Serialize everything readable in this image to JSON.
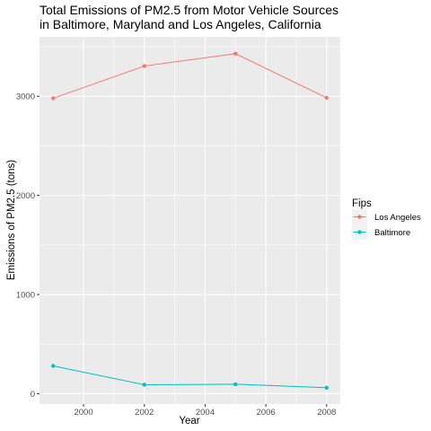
{
  "chart_data": {
    "type": "line",
    "title_lines": [
      "Total Emissions of PM2.5 from Motor Vehicle Sources",
      "in Baltimore, Maryland and Los Angeles, California"
    ],
    "xlabel": "Year",
    "ylabel": "Emissions of PM2.5 (tons)",
    "x": [
      1999,
      2002,
      2005,
      2008
    ],
    "xlim": [
      1998.55,
      2008.45
    ],
    "ylim": [
      -105,
      3600
    ],
    "x_ticks": [
      2000,
      2002,
      2004,
      2006,
      2008
    ],
    "y_ticks": [
      0,
      1000,
      2000,
      3000
    ],
    "grid": true,
    "legend": {
      "title": "Fips",
      "placement": "right"
    },
    "series": [
      {
        "name": "Los Angeles",
        "color": "#F8766D",
        "values": [
          2980,
          3305,
          3430,
          2985
        ]
      },
      {
        "name": "Baltimore",
        "color": "#00BFC4",
        "values": [
          280,
          90,
          95,
          60
        ]
      }
    ]
  }
}
